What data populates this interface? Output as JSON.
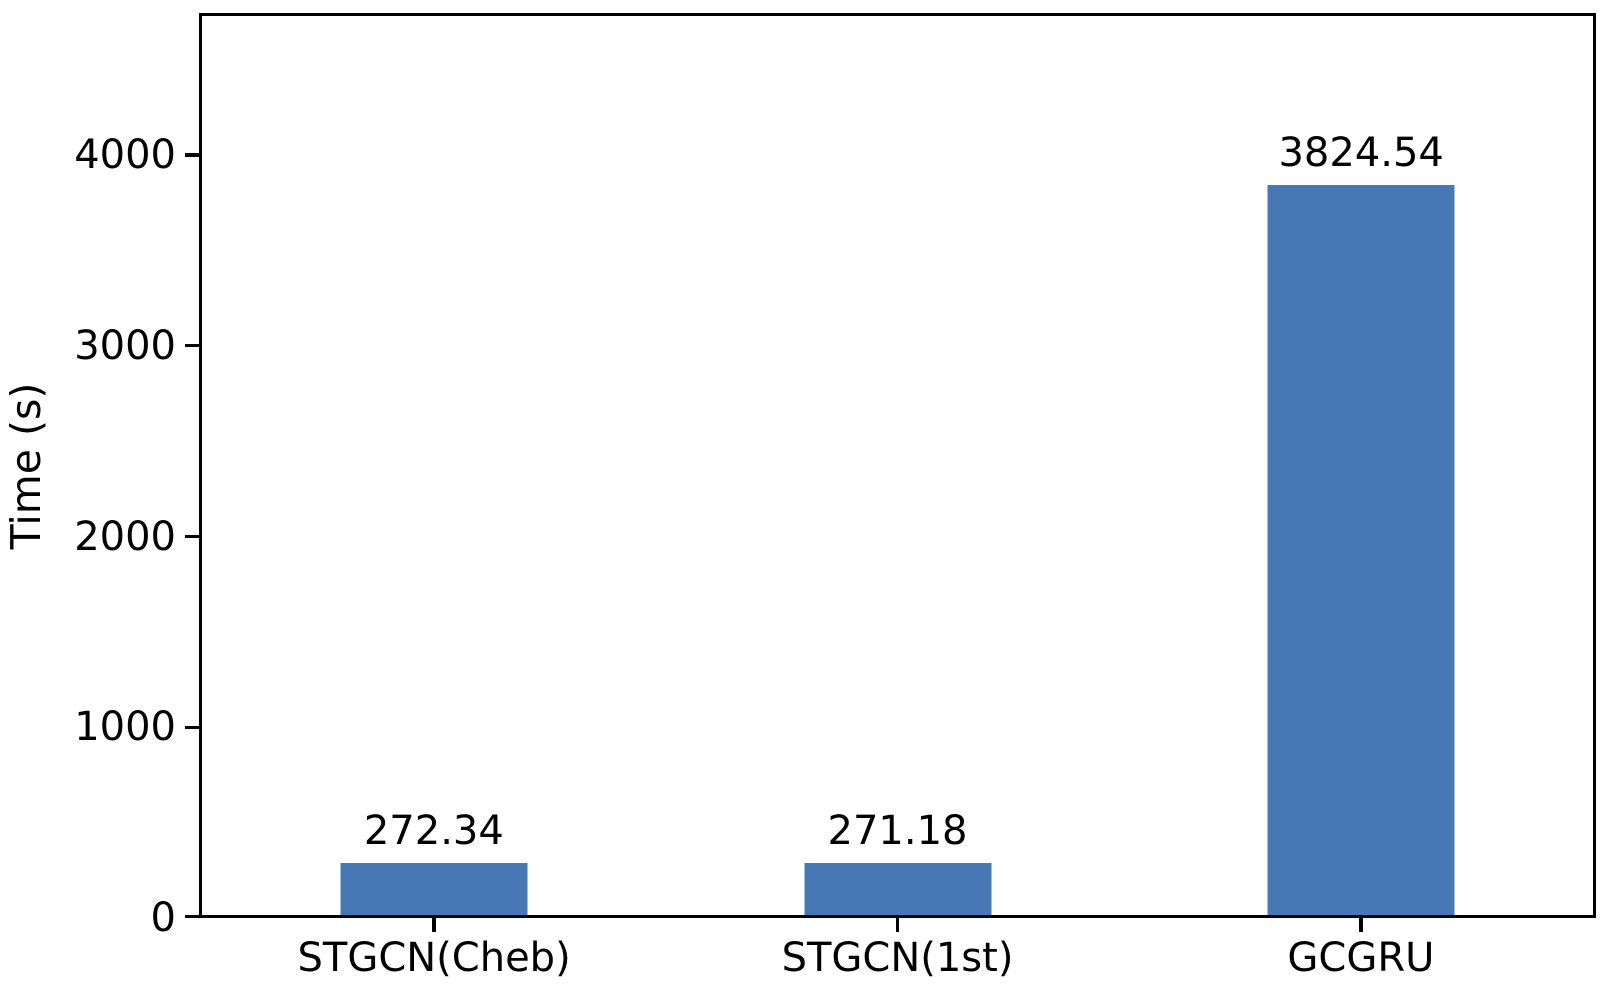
{
  "chart_data": {
    "type": "bar",
    "categories": [
      "STGCN(Cheb)",
      "STGCN(1st)",
      "GCGRU"
    ],
    "values": [
      272.34,
      271.18,
      3824.54
    ],
    "value_labels": [
      "272.34",
      "271.18",
      "3824.54"
    ],
    "title": "",
    "xlabel": "",
    "ylabel": "Time (s)",
    "ylim": [
      0,
      4744
    ],
    "yticks": [
      0,
      1000,
      2000,
      3000,
      4000
    ],
    "ytick_labels": [
      "0",
      "1000",
      "2000",
      "3000",
      "4000"
    ],
    "bar_color": "#4878B4",
    "axis_color": "#000000",
    "text_color": "#000000",
    "grid": false,
    "legend": null
  }
}
